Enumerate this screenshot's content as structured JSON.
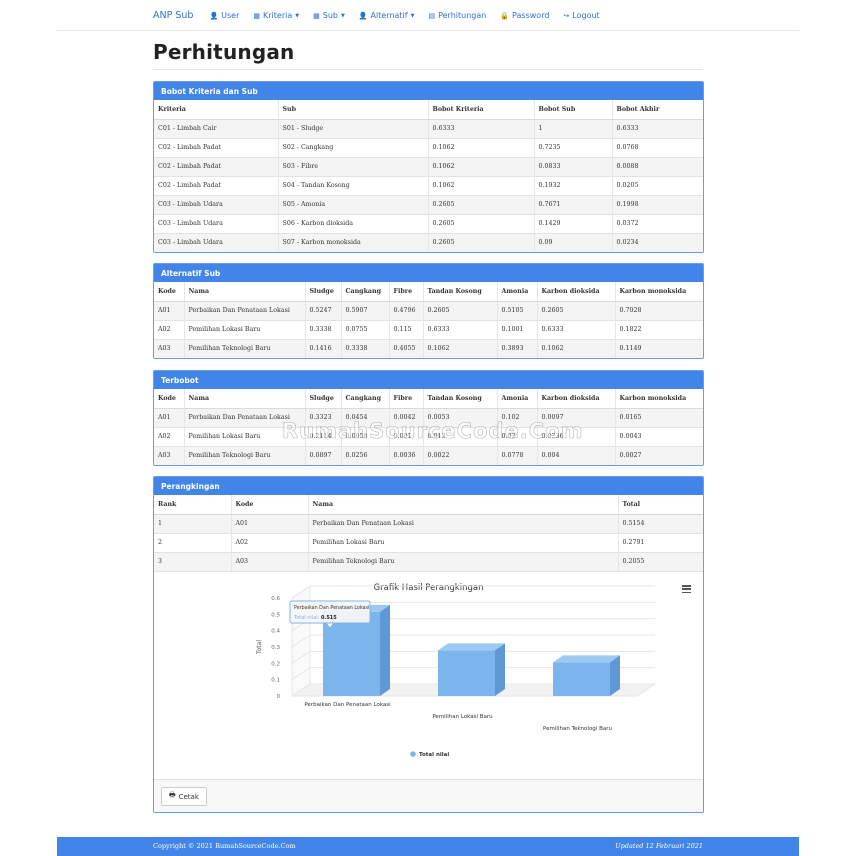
{
  "nav": {
    "brand": "ANP Sub",
    "items": [
      {
        "label": "User",
        "icon": "user-icon",
        "caret": false
      },
      {
        "label": "Kriteria",
        "icon": "table-icon",
        "caret": true
      },
      {
        "label": "Sub",
        "icon": "table-icon",
        "caret": true
      },
      {
        "label": "Alternatif",
        "icon": "user-icon",
        "caret": true
      },
      {
        "label": "Perhitungan",
        "icon": "calendar-icon",
        "caret": false
      },
      {
        "label": "Password",
        "icon": "lock-icon",
        "caret": false
      },
      {
        "label": "Logout",
        "icon": "logout-icon",
        "caret": false
      }
    ]
  },
  "page": {
    "title": "Perhitungan"
  },
  "bobot": {
    "heading": "Bobot Kriteria dan Sub",
    "columns": [
      "Kriteria",
      "Sub",
      "Bobot Kriteria",
      "Bobot Sub",
      "Bobot Akhir"
    ],
    "rows": [
      [
        "C01 - Limbah Cair",
        "S01 - Sludge",
        "0.6333",
        "1",
        "0.6333"
      ],
      [
        "C02 - Limbah Padat",
        "S02 - Cangkang",
        "0.1062",
        "0.7235",
        "0.0768"
      ],
      [
        "C02 - Limbah Padat",
        "S03 - Fibre",
        "0.1062",
        "0.0833",
        "0.0088"
      ],
      [
        "C02 - Limbah Padat",
        "S04 - Tandan Kosong",
        "0.1062",
        "0.1932",
        "0.0205"
      ],
      [
        "C03 - Limbah Udara",
        "S05 - Amonia",
        "0.2605",
        "0.7671",
        "0.1998"
      ],
      [
        "C03 - Limbah Udara",
        "S06 - Karbon dioksida",
        "0.2605",
        "0.1429",
        "0.0372"
      ],
      [
        "C03 - Limbah Udara",
        "S07 - Karbon monoksida",
        "0.2605",
        "0.09",
        "0.0234"
      ]
    ]
  },
  "alternatif": {
    "heading": "Alternatif Sub",
    "columns": [
      "Kode",
      "Nama",
      "Sludge",
      "Cangkang",
      "Fibre",
      "Tandan Kosong",
      "Amonia",
      "Karbon dioksida",
      "Karbon monoksida"
    ],
    "rows": [
      [
        "A01",
        "Perbaikan Dan Penataan Lokasi",
        "0.5247",
        "0.5907",
        "0.4796",
        "0.2605",
        "0.5105",
        "0.2605",
        "0.7028"
      ],
      [
        "A02",
        "Pemilihan Lokasi Baru",
        "0.3338",
        "0.0755",
        "0.115",
        "0.6333",
        "0.1001",
        "0.6333",
        "0.1822"
      ],
      [
        "A03",
        "Pemilihan Teknologi Baru",
        "0.1416",
        "0.3338",
        "0.4055",
        "0.1062",
        "0.3893",
        "0.1062",
        "0.1149"
      ]
    ]
  },
  "terbobot": {
    "heading": "Terbobot",
    "columns": [
      "Kode",
      "Nama",
      "Sludge",
      "Cangkang",
      "Fibre",
      "Tandan Kosong",
      "Amonia",
      "Karbon dioksida",
      "Karbon monoksida"
    ],
    "rows": [
      [
        "A01",
        "Perbaikan Dan Penataan Lokasi",
        "0.3323",
        "0.0454",
        "0.0042",
        "0.0053",
        "0.102",
        "0.0097",
        "0.0165"
      ],
      [
        "A02",
        "Pemilihan Lokasi Baru",
        "0.2114",
        "0.0058",
        "0.001",
        "0.013",
        "0.02",
        "0.0236",
        "0.0043"
      ],
      [
        "A03",
        "Pemilihan Teknologi Baru",
        "0.0897",
        "0.0256",
        "0.0036",
        "0.0022",
        "0.0778",
        "0.004",
        "0.0027"
      ]
    ]
  },
  "perangkingan": {
    "heading": "Perangkingan",
    "columns": [
      "Rank",
      "Kode",
      "Nama",
      "Total"
    ],
    "rows": [
      [
        "1",
        "A01",
        "Perbaikan Dan Penataan Lokasi",
        "0.5154"
      ],
      [
        "2",
        "A02",
        "Pemilihan Lokasi Baru",
        "0.2791"
      ],
      [
        "3",
        "A03",
        "Pemilihan Teknologi Baru",
        "0.2055"
      ]
    ]
  },
  "chart_data": {
    "type": "bar",
    "title": "Grafik Hasil Perangkingan",
    "ylabel": "Total",
    "xlabel": "",
    "categories": [
      "Perbaikan Dan Penataan Lokasi",
      "Pemilihan Lokasi Baru",
      "Pemilihan Teknologi Baru"
    ],
    "series": [
      {
        "name": "Total nilai",
        "values": [
          0.515,
          0.279,
          0.206
        ]
      }
    ],
    "yticks": [
      "0",
      "0.1",
      "0.2",
      "0.3",
      "0.4",
      "0.5",
      "0.6"
    ],
    "ylim": [
      0,
      0.6
    ],
    "grid": true,
    "legend": "bottom-center",
    "bar_color": "#7cb5ec",
    "tooltip": {
      "category": "Perbaikan Dan Penataan Lokasi",
      "series": "Total nilai",
      "value": "0.515"
    }
  },
  "actions": {
    "print_label": "Cetak"
  },
  "footer": {
    "copyright": "Copyright © 2021 RumahSourceCode.Com",
    "updated": "Updated 12 Februari 2021"
  },
  "watermark": "RumahSourceCode.Com",
  "colors": {
    "primary": "#4285e9",
    "link": "#2f6fd6"
  }
}
